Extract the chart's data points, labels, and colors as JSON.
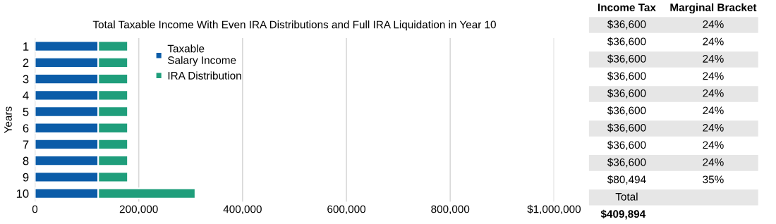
{
  "chart_data": [
    {
      "type": "bar",
      "orientation": "horizontal",
      "stacked": true,
      "title": "Total Taxable Income With Even IRA Distributions and Full IRA Liquidation in Year 10",
      "ylabel": "Years",
      "categories": [
        "1",
        "2",
        "3",
        "4",
        "5",
        "6",
        "7",
        "8",
        "9",
        "10"
      ],
      "series": [
        {
          "name": "Taxable\nSalary Income",
          "color": "#0b5ca8",
          "values": [
            122000,
            122000,
            122000,
            122000,
            122000,
            122000,
            122000,
            122000,
            122000,
            122000
          ]
        },
        {
          "name": "IRA Distribution",
          "color": "#1f9e7b",
          "values": [
            57000,
            57000,
            57000,
            57000,
            57000,
            57000,
            57000,
            57000,
            57000,
            187000
          ]
        }
      ],
      "xlim": [
        0,
        1000000
      ],
      "xticks": [
        0,
        {
          "value": 200000,
          "label": "200,000"
        },
        {
          "value": 400000,
          "label": "400,000"
        },
        {
          "value": 600000,
          "label": "600,000"
        },
        {
          "value": 800000,
          "label": "800,000"
        },
        {
          "value": 1000000,
          "label": "$1,000,000"
        }
      ],
      "grid": "x",
      "legend": "top left"
    },
    {
      "type": "other",
      "annotations": [
        "Income Tax",
        "Marginal Bracket",
        "$36,600",
        "24%",
        "$36,600",
        "24%",
        "$36,600",
        "24%",
        "$36,600",
        "24%",
        "$36,600",
        "24%",
        "$36,600",
        "24%",
        "$36,600",
        "24%",
        "$36,600",
        "24%",
        "$36,600",
        "24%",
        "$80,494",
        "35%",
        "Total",
        "$409,894"
      ]
    }
  ]
}
